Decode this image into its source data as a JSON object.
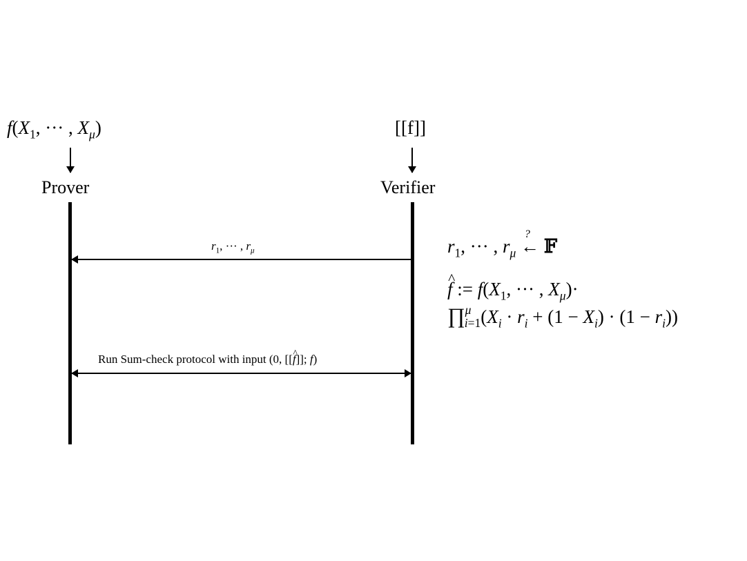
{
  "prover": {
    "input_label": "f(X1, ··· , Xμ)",
    "name": "Prover"
  },
  "verifier": {
    "input_label": "[[f]]",
    "name": "Verifier"
  },
  "messages": [
    {
      "label": "r1, ··· , rμ",
      "direction": "verifier-to-prover"
    },
    {
      "label": "Run Sum-check protocol with input (0, [[f̂]]; f)",
      "direction": "bidirectional"
    }
  ],
  "verifier_notes": {
    "sample": "r1, ··· , rμ ←? 𝔽",
    "fhat_line1": "f̂ := f(X1, ··· , Xμ)·",
    "fhat_line2": "∏μi=1(Xi · ri + (1 − Xi) · (1 − ri))"
  }
}
